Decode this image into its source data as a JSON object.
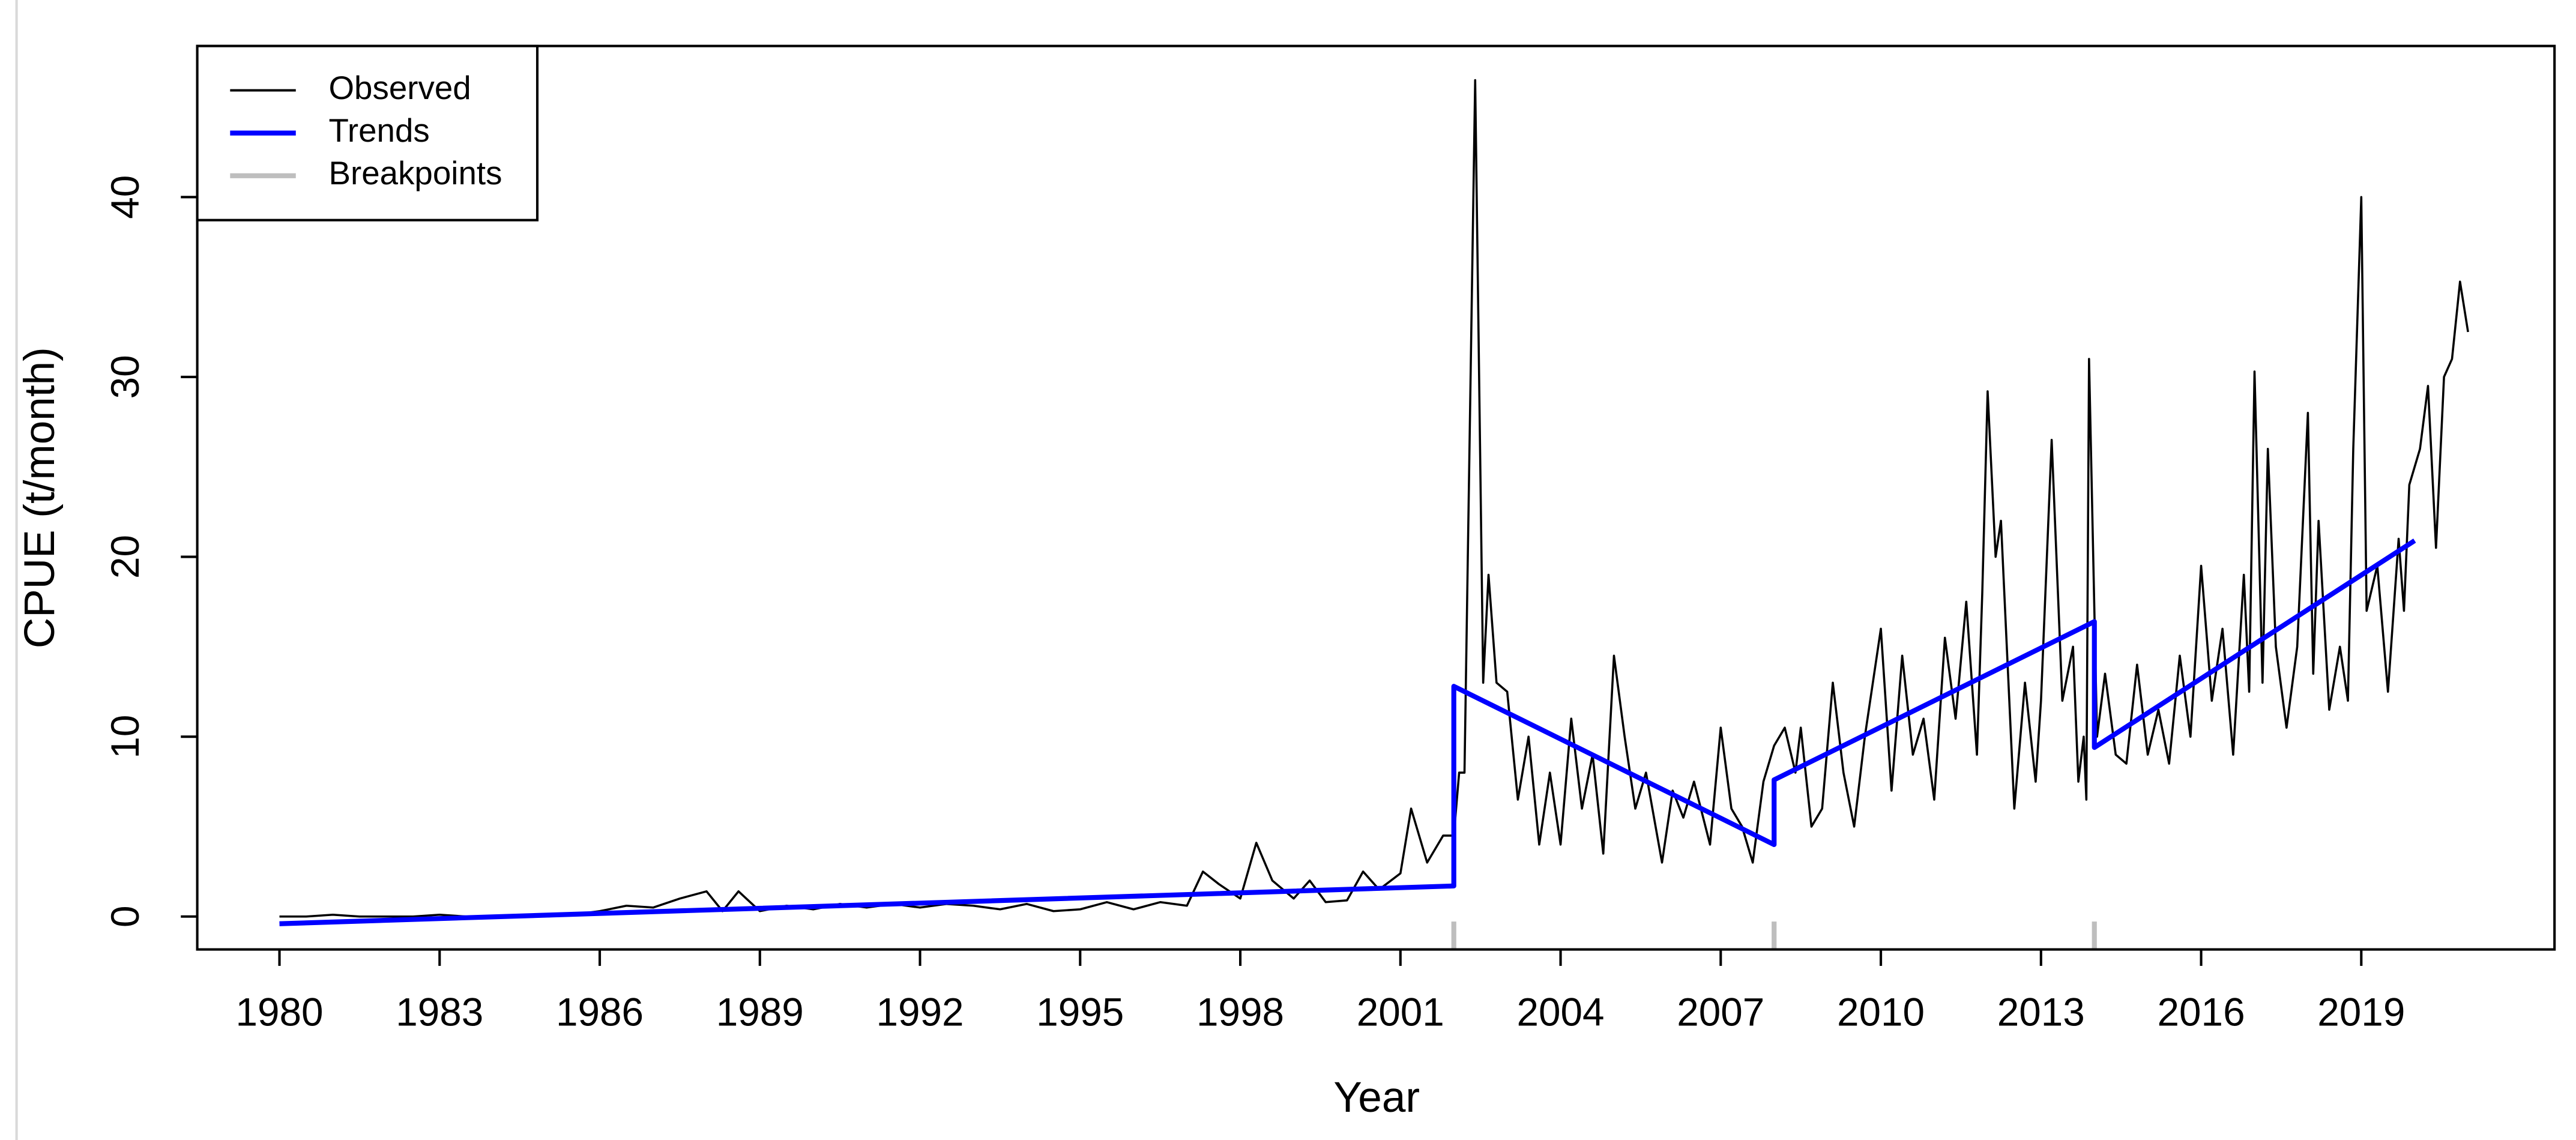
{
  "chart_data": {
    "type": "line",
    "xlabel": "Year",
    "ylabel": "CPUE (t/month)",
    "xlim": [
      1978.46,
      2022.62
    ],
    "ylim": [
      -1.83,
      48.4
    ],
    "xticks": [
      1980,
      1983,
      1986,
      1989,
      1992,
      1995,
      1998,
      2001,
      2004,
      2007,
      2010,
      2013,
      2016,
      2019
    ],
    "yticks": [
      0,
      10,
      20,
      30,
      40
    ],
    "legend": "top-left",
    "series": [
      {
        "name": "Observed",
        "color": "#000000",
        "x": [
          1980,
          1980.5,
          1981,
          1981.5,
          1982,
          1982.5,
          1983,
          1983.5,
          1984,
          1984.5,
          1985,
          1985.5,
          1986,
          1986.5,
          1987,
          1987.5,
          1988,
          1988.3,
          1988.6,
          1989,
          1989.5,
          1990,
          1990.5,
          1991,
          1991.5,
          1992,
          1992.5,
          1993,
          1993.5,
          1994,
          1994.5,
          1995,
          1995.5,
          1996,
          1996.5,
          1997,
          1997.3,
          1997.6,
          1998,
          1998.3,
          1998.6,
          1999,
          1999.3,
          1999.6,
          2000,
          2000.3,
          2000.6,
          2001,
          2001.2,
          2001.5,
          2001.8,
          2002.0,
          2002.1,
          2002.2,
          2002.4,
          2002.55,
          2002.65,
          2002.8,
          2003.0,
          2003.2,
          2003.4,
          2003.6,
          2003.8,
          2004.0,
          2004.2,
          2004.4,
          2004.6,
          2004.8,
          2005.0,
          2005.2,
          2005.4,
          2005.6,
          2005.9,
          2006.1,
          2006.3,
          2006.5,
          2006.8,
          2007.0,
          2007.2,
          2007.4,
          2007.6,
          2007.8,
          2008.0,
          2008.2,
          2008.4,
          2008.5,
          2008.7,
          2008.9,
          2009.1,
          2009.3,
          2009.5,
          2009.7,
          2010.0,
          2010.2,
          2010.4,
          2010.6,
          2010.8,
          2011.0,
          2011.2,
          2011.4,
          2011.6,
          2011.8,
          2011.9,
          2012.0,
          2012.15,
          2012.25,
          2012.5,
          2012.7,
          2012.9,
          2013.0,
          2013.2,
          2013.4,
          2013.6,
          2013.7,
          2013.8,
          2013.85,
          2013.9,
          2014.05,
          2014.2,
          2014.4,
          2014.6,
          2014.8,
          2015.0,
          2015.2,
          2015.4,
          2015.6,
          2015.8,
          2016.0,
          2016.2,
          2016.4,
          2016.6,
          2016.8,
          2016.9,
          2017.0,
          2017.15,
          2017.25,
          2017.4,
          2017.6,
          2017.8,
          2018.0,
          2018.1,
          2018.2,
          2018.4,
          2018.6,
          2018.75,
          2018.85,
          2019.0,
          2019.1,
          2019.3,
          2019.5,
          2019.7,
          2019.8,
          2019.9,
          2020.1,
          2020.25,
          2020.4,
          2020.55,
          2020.7,
          2020.85,
          2021.0
        ],
        "values": [
          0,
          0,
          0.1,
          0,
          0,
          0,
          0.1,
          0,
          0,
          0,
          0,
          0.1,
          0.3,
          0.6,
          0.5,
          1.0,
          1.4,
          0.3,
          1.4,
          0.3,
          0.6,
          0.4,
          0.7,
          0.5,
          0.7,
          0.5,
          0.7,
          0.6,
          0.4,
          0.7,
          0.3,
          0.4,
          0.8,
          0.4,
          0.8,
          0.6,
          2.5,
          1.8,
          1.0,
          4.1,
          2.0,
          1.0,
          2.0,
          0.8,
          0.9,
          2.5,
          1.5,
          2.4,
          6.0,
          3.0,
          4.5,
          4.5,
          8,
          8,
          46.5,
          13,
          19,
          13,
          12.5,
          6.5,
          10,
          4,
          8,
          4,
          11,
          6,
          9,
          3.5,
          14.5,
          10,
          6,
          8,
          3,
          7,
          5.5,
          7.5,
          4,
          10.5,
          6,
          5,
          3,
          7.5,
          9.5,
          10.5,
          8,
          10.5,
          5,
          6,
          13,
          8,
          5,
          10,
          16,
          7,
          14.5,
          9,
          11,
          6.5,
          15.5,
          11,
          17.5,
          9,
          18,
          29.2,
          20,
          22,
          6,
          13,
          7.5,
          12,
          26.5,
          12,
          15,
          7.5,
          10,
          6.5,
          31,
          10,
          13.5,
          9,
          8.5,
          14,
          9,
          11.5,
          8.5,
          14.5,
          10,
          19.5,
          12,
          16,
          9,
          19,
          12.5,
          30.3,
          13,
          26,
          15,
          10.5,
          15,
          28,
          13.5,
          22,
          11.5,
          15,
          12,
          26,
          40,
          17,
          19.5,
          12.5,
          21,
          17,
          24,
          26,
          29.5,
          20.5,
          30,
          31,
          35.3,
          32.5
        ]
      },
      {
        "name": "Trends",
        "color": "#0000ff",
        "x": [
          1980,
          2002,
          2002,
          2008,
          2008,
          2014,
          2014,
          2020
        ],
        "values": [
          -0.4,
          1.7,
          12.8,
          4.0,
          7.6,
          16.4,
          9.4,
          20.9
        ]
      },
      {
        "name": "Breakpoints",
        "color": "#bebebe",
        "kind": "rug",
        "x": [
          2002,
          2008,
          2014
        ]
      }
    ]
  }
}
